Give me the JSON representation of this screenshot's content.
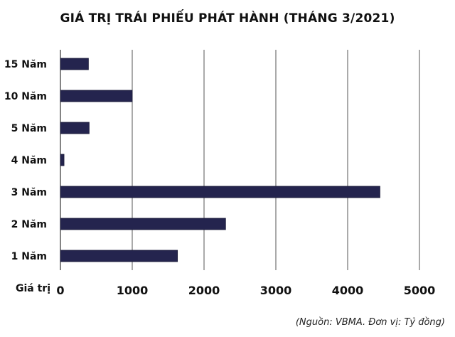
{
  "chart_data": {
    "type": "bar",
    "orientation": "horizontal",
    "title": "GIÁ TRỊ TRÁI PHIẾU PHÁT HÀNH (THÁNG 3/2021)",
    "categories": [
      "15 Năm",
      "10 Năm",
      "5 Năm",
      "4 Năm",
      "3 Năm",
      "2 Năm",
      "1 Năm"
    ],
    "values": [
      390,
      1000,
      400,
      50,
      4450,
      2300,
      1630
    ],
    "xlabel": "Giá trị",
    "xlim": [
      0,
      5000
    ],
    "xticks": [
      "0",
      "1000",
      "2000",
      "3000",
      "4000",
      "5000"
    ],
    "grid": true,
    "bar_color": "#24244e",
    "note": "(Nguồn: VBMA. Đơn vị: Tỷ đồng)"
  }
}
